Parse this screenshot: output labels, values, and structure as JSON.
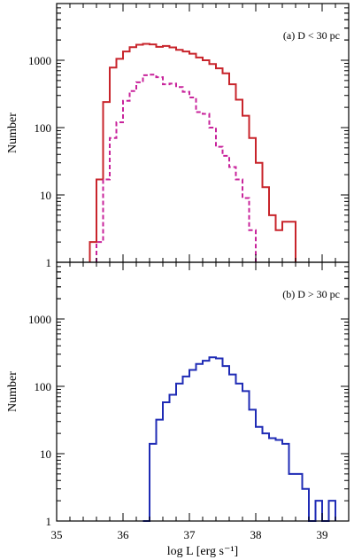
{
  "chart_data": [
    {
      "type": "step",
      "title": "",
      "panel_label": "(a) D < 30 pc",
      "xlabel": "",
      "ylabel": "Number",
      "xlim": [
        35,
        39.4
      ],
      "ylim": [
        1,
        5000
      ],
      "yscale": "log",
      "yticks": [
        1,
        10,
        100,
        1000
      ],
      "ytick_labels": [
        "1",
        "10",
        "100",
        "1000"
      ],
      "xticks": [
        35,
        36,
        37,
        38,
        39
      ],
      "xtick_labels": [],
      "bin_width": 0.1,
      "series": [
        {
          "color": "#c8242b",
          "style": "solid",
          "bins": [
            [
              35.5,
              2
            ],
            [
              35.6,
              17
            ],
            [
              35.7,
              240
            ],
            [
              35.8,
              780
            ],
            [
              35.9,
              1050
            ],
            [
              36.0,
              1350
            ],
            [
              36.1,
              1560
            ],
            [
              36.2,
              1700
            ],
            [
              36.3,
              1750
            ],
            [
              36.4,
              1720
            ],
            [
              36.5,
              1580
            ],
            [
              36.6,
              1630
            ],
            [
              36.7,
              1550
            ],
            [
              36.8,
              1430
            ],
            [
              36.9,
              1350
            ],
            [
              37.0,
              1250
            ],
            [
              37.1,
              1100
            ],
            [
              37.2,
              1000
            ],
            [
              37.3,
              880
            ],
            [
              37.4,
              760
            ],
            [
              37.5,
              640
            ],
            [
              37.6,
              440
            ],
            [
              37.7,
              260
            ],
            [
              37.8,
              150
            ],
            [
              37.9,
              70
            ],
            [
              38.0,
              30
            ],
            [
              38.1,
              13
            ],
            [
              38.2,
              5
            ],
            [
              38.3,
              3
            ],
            [
              38.4,
              4
            ],
            [
              38.5,
              4
            ]
          ]
        },
        {
          "color": "#c8239b",
          "style": "dashed",
          "bins": [
            [
              35.6,
              2
            ],
            [
              35.7,
              17
            ],
            [
              35.8,
              70
            ],
            [
              35.9,
              120
            ],
            [
              36.0,
              250
            ],
            [
              36.1,
              350
            ],
            [
              36.2,
              470
            ],
            [
              36.3,
              600
            ],
            [
              36.4,
              610
            ],
            [
              36.5,
              560
            ],
            [
              36.6,
              440
            ],
            [
              36.7,
              450
            ],
            [
              36.8,
              400
            ],
            [
              36.9,
              340
            ],
            [
              37.0,
              280
            ],
            [
              37.1,
              170
            ],
            [
              37.2,
              160
            ],
            [
              37.3,
              100
            ],
            [
              37.4,
              52
            ],
            [
              37.5,
              38
            ],
            [
              37.6,
              26
            ],
            [
              37.7,
              17
            ],
            [
              37.8,
              9
            ],
            [
              37.9,
              3
            ]
          ]
        }
      ]
    },
    {
      "type": "step",
      "title": "",
      "panel_label": "(b) D > 30 pc",
      "xlabel": "log L [erg s⁻¹]",
      "ylabel": "Number",
      "xlim": [
        35,
        39.4
      ],
      "ylim": [
        1,
        5000
      ],
      "yscale": "log",
      "yticks": [
        1,
        10,
        100,
        1000
      ],
      "ytick_labels": [
        "1",
        "10",
        "100",
        "1000"
      ],
      "xticks": [
        35,
        36,
        37,
        38,
        39
      ],
      "xtick_labels": [
        "35",
        "36",
        "37",
        "38",
        "39"
      ],
      "bin_width": 0.1,
      "series": [
        {
          "color": "#1f2bb5",
          "style": "solid",
          "bins": [
            [
              36.3,
              1
            ],
            [
              36.4,
              14
            ],
            [
              36.5,
              32
            ],
            [
              36.6,
              58
            ],
            [
              36.7,
              75
            ],
            [
              36.8,
              110
            ],
            [
              36.9,
              140
            ],
            [
              37.0,
              175
            ],
            [
              37.1,
              215
            ],
            [
              37.2,
              240
            ],
            [
              37.3,
              270
            ],
            [
              37.4,
              260
            ],
            [
              37.5,
              200
            ],
            [
              37.6,
              150
            ],
            [
              37.7,
              110
            ],
            [
              37.8,
              85
            ],
            [
              37.9,
              45
            ],
            [
              38.0,
              25
            ],
            [
              38.1,
              20
            ],
            [
              38.2,
              17
            ],
            [
              38.3,
              16
            ],
            [
              38.4,
              14
            ],
            [
              38.5,
              5
            ],
            [
              38.6,
              5
            ],
            [
              38.7,
              3
            ],
            [
              38.8,
              1
            ],
            [
              38.9,
              2
            ],
            [
              39.0,
              1
            ],
            [
              39.1,
              2
            ]
          ]
        }
      ]
    }
  ]
}
